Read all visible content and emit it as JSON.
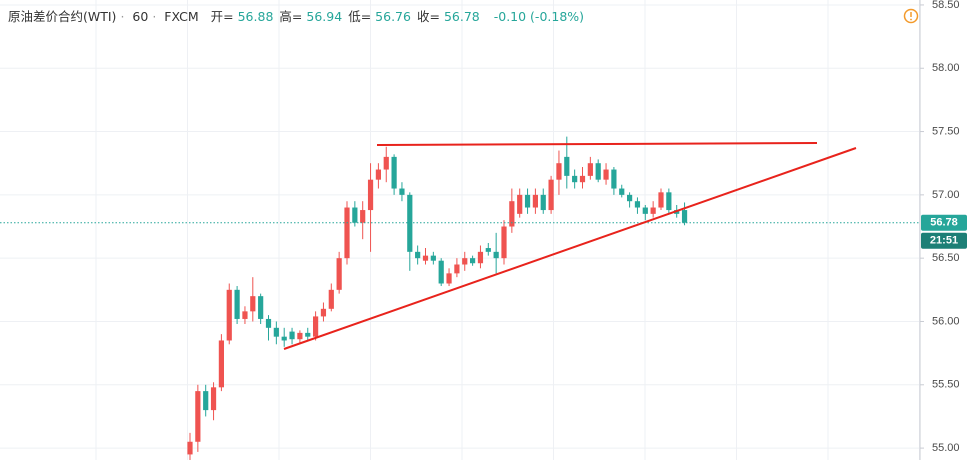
{
  "header": {
    "symbol": "原油差价合约(WTI)",
    "interval": "60",
    "source": "FXCM",
    "fields": [
      {
        "label": "开=",
        "value": "56.88"
      },
      {
        "label": "高=",
        "value": "56.94"
      },
      {
        "label": "低=",
        "value": "56.76"
      },
      {
        "label": "收=",
        "value": "56.78"
      }
    ],
    "change": "-0.10 (-0.18%)"
  },
  "chart_data": {
    "type": "candlestick",
    "up_color": "#ef5350",
    "down_color": "#26a69a",
    "open": [
      54.95,
      55.05,
      55.45,
      55.3,
      55.48,
      55.85,
      56.25,
      56.02,
      56.08,
      56.2,
      56.02,
      55.95,
      55.88,
      55.92,
      55.86,
      55.91,
      55.88,
      56.04,
      56.1,
      56.25,
      56.5,
      56.9,
      56.78,
      56.88,
      57.12,
      57.2,
      57.3,
      57.05,
      57.0,
      56.55,
      56.48,
      56.52,
      56.48,
      56.3,
      56.38,
      56.45,
      56.5,
      56.46,
      56.58,
      56.55,
      56.5,
      56.75,
      56.85,
      57.0,
      56.9,
      57.0,
      56.88,
      57.12,
      57.3,
      57.15,
      57.1,
      57.15,
      57.25,
      57.12,
      57.2,
      57.05,
      57.0,
      56.95,
      56.9,
      56.85,
      56.9,
      57.02,
      56.88,
      56.88
    ],
    "high": [
      55.12,
      55.5,
      55.5,
      55.52,
      55.9,
      56.3,
      56.28,
      56.12,
      56.35,
      56.22,
      56.05,
      56.0,
      55.95,
      55.95,
      55.93,
      55.95,
      56.08,
      56.15,
      56.3,
      56.55,
      56.95,
      56.95,
      56.95,
      57.25,
      57.25,
      57.38,
      57.32,
      57.1,
      57.02,
      56.6,
      56.58,
      56.55,
      56.5,
      56.42,
      56.5,
      56.55,
      56.52,
      56.6,
      56.62,
      56.7,
      56.8,
      57.05,
      57.05,
      57.05,
      57.05,
      57.05,
      57.15,
      57.35,
      57.46,
      57.2,
      57.22,
      57.3,
      57.28,
      57.25,
      57.22,
      57.08,
      57.02,
      56.98,
      56.92,
      56.95,
      57.05,
      57.05,
      56.92,
      56.94
    ],
    "low": [
      54.9,
      54.97,
      55.25,
      55.22,
      55.45,
      55.82,
      55.98,
      55.98,
      56.0,
      55.98,
      55.85,
      55.82,
      55.8,
      55.82,
      55.83,
      55.85,
      55.85,
      56.0,
      56.08,
      56.22,
      56.45,
      56.75,
      56.65,
      56.55,
      57.05,
      57.1,
      57.0,
      56.95,
      56.4,
      56.45,
      56.45,
      56.45,
      56.28,
      56.28,
      56.35,
      56.4,
      56.44,
      56.42,
      56.52,
      56.38,
      56.45,
      56.7,
      56.82,
      56.85,
      56.85,
      56.85,
      56.85,
      57.0,
      57.05,
      57.05,
      57.05,
      57.12,
      57.1,
      57.08,
      57.0,
      56.98,
      56.9,
      56.85,
      56.8,
      56.82,
      56.88,
      56.85,
      56.82,
      56.76
    ],
    "close": [
      55.05,
      55.45,
      55.3,
      55.48,
      55.85,
      56.25,
      56.02,
      56.08,
      56.2,
      56.02,
      55.95,
      55.88,
      55.85,
      55.86,
      55.91,
      55.88,
      56.04,
      56.1,
      56.25,
      56.5,
      56.9,
      56.78,
      56.88,
      57.12,
      57.2,
      57.3,
      57.05,
      57.0,
      56.55,
      56.5,
      56.52,
      56.48,
      56.3,
      56.38,
      56.45,
      56.5,
      56.46,
      56.55,
      56.55,
      56.5,
      56.75,
      56.95,
      57.0,
      56.9,
      57.0,
      56.88,
      57.12,
      57.25,
      57.15,
      57.1,
      57.15,
      57.25,
      57.12,
      57.2,
      57.05,
      57.0,
      56.95,
      56.9,
      56.85,
      56.9,
      57.02,
      56.88,
      56.85,
      56.78
    ],
    "ylim": [
      54.906,
      58.539
    ],
    "yticks": [
      {
        "value": 55,
        "label": "55.00"
      },
      {
        "value": 55.5,
        "label": "55.50"
      },
      {
        "value": 56,
        "label": "56.00"
      },
      {
        "value": 56.5,
        "label": "56.50"
      },
      {
        "value": 57,
        "label": "57.00"
      },
      {
        "value": 57.5,
        "label": "57.50"
      },
      {
        "value": 58,
        "label": "58.00"
      },
      {
        "value": 58.5,
        "label": "58.50"
      }
    ],
    "price_marker": {
      "value": 56.78,
      "label": "56.78"
    },
    "countdown": "21:51",
    "grid": true
  }
}
